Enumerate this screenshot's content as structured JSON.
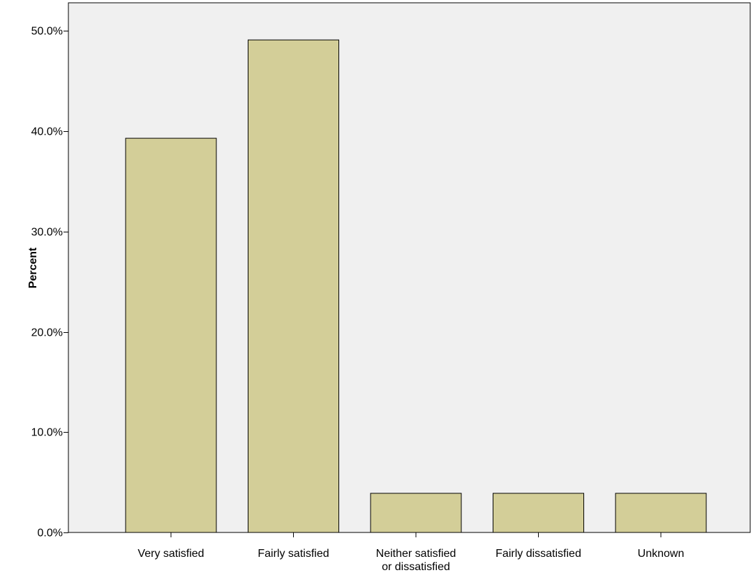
{
  "chart_data": {
    "type": "bar",
    "title": "",
    "xlabel": "",
    "ylabel": "Percent",
    "categories": [
      [
        "Very satisfied"
      ],
      [
        "Fairly satisfied"
      ],
      [
        "Neither satisfied",
        "or dissatisfied"
      ],
      [
        "Fairly dissatisfied"
      ],
      [
        "Unknown"
      ]
    ],
    "values": [
      39.3,
      49.1,
      3.9,
      3.9,
      3.9
    ],
    "ylim": [
      0,
      52.8
    ],
    "yticks": [
      0,
      10,
      20,
      30,
      40,
      50
    ],
    "ytick_labels": [
      "0.0%",
      "10.0%",
      "20.0%",
      "30.0%",
      "40.0%",
      "50.0%"
    ],
    "grid": false,
    "colors": {
      "plot_background": "#f0f0f0",
      "bar_fill": "#d3ce98",
      "bar_stroke": "#000000",
      "axis": "#000000"
    }
  }
}
